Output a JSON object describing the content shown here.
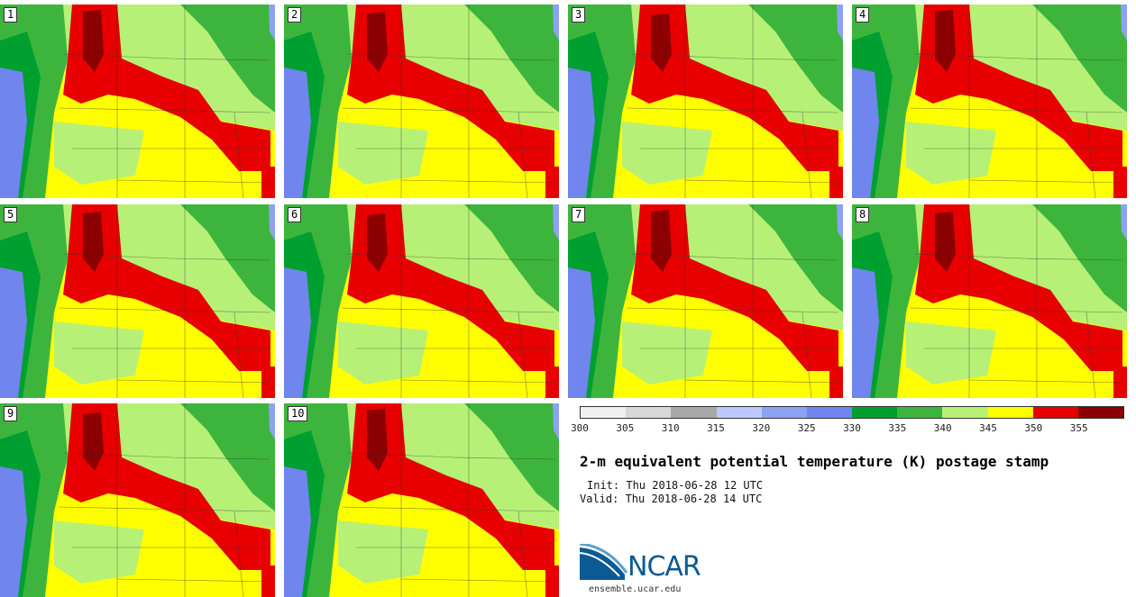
{
  "figure": {
    "title": "2-m equivalent potential temperature (K) postage stamp",
    "init": "Init: Thu 2018-06-28 12 UTC",
    "valid": "Valid: Thu 2018-06-28 14 UTC"
  },
  "panels": [
    {
      "label": "1"
    },
    {
      "label": "2"
    },
    {
      "label": "3"
    },
    {
      "label": "4"
    },
    {
      "label": "5"
    },
    {
      "label": "6"
    },
    {
      "label": "7"
    },
    {
      "label": "8"
    },
    {
      "label": "9"
    },
    {
      "label": "10"
    }
  ],
  "colorbar": {
    "colors": [
      "#f0f0f0",
      "#d8d8d8",
      "#a9a9a9",
      "#bcc9ff",
      "#8da2f2",
      "#7085ee",
      "#00a030",
      "#3db53d",
      "#b7f076",
      "#ffff00",
      "#e80000",
      "#8b0000"
    ],
    "ticks": [
      "300",
      "305",
      "310",
      "315",
      "320",
      "325",
      "330",
      "335",
      "340",
      "345",
      "350",
      "355"
    ]
  },
  "map_colors": {
    "dark_green": "#00a030",
    "green": "#3db53d",
    "light_green": "#b7f076",
    "yellow": "#ffff00",
    "red": "#e80000",
    "dark_red": "#8b0000",
    "blue": "#7085ee",
    "light_blue": "#8da2f2"
  },
  "logo": {
    "text": "NCAR",
    "url": "ensemble.ucar.edu"
  }
}
